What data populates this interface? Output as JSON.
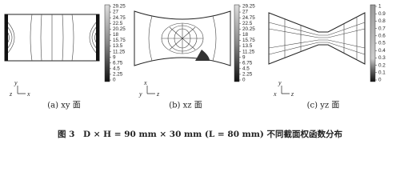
{
  "panels": [
    {
      "caption": "(a) xy 面",
      "axis_up": "y",
      "axis_out": "z",
      "axis_right": "x",
      "colorbar_ticks": [
        29.25,
        27,
        24.75,
        22.5,
        20.25,
        18,
        15.75,
        13.5,
        11.25,
        9,
        6.75,
        4.5,
        2.25,
        0
      ]
    },
    {
      "caption": "(b) xz 面",
      "axis_up": "x",
      "axis_out": "y",
      "axis_right": "z",
      "colorbar_ticks": [
        29.25,
        27,
        24.75,
        22.5,
        20.25,
        18,
        15.75,
        13.5,
        11.25,
        9,
        6.75,
        4.5,
        2.25,
        0
      ]
    },
    {
      "caption": "(c) yz 面",
      "axis_up": "y",
      "axis_out": "x",
      "axis_right": "z",
      "colorbar_ticks": [
        1,
        0.9,
        0.8,
        0.7,
        0.6,
        0.5,
        0.4,
        0.3,
        0.2,
        0.1,
        0
      ]
    }
  ],
  "figure_caption": "图 3　D × H = 90 mm × 30 mm (L = 80 mm) 不同截面权函数分布"
}
